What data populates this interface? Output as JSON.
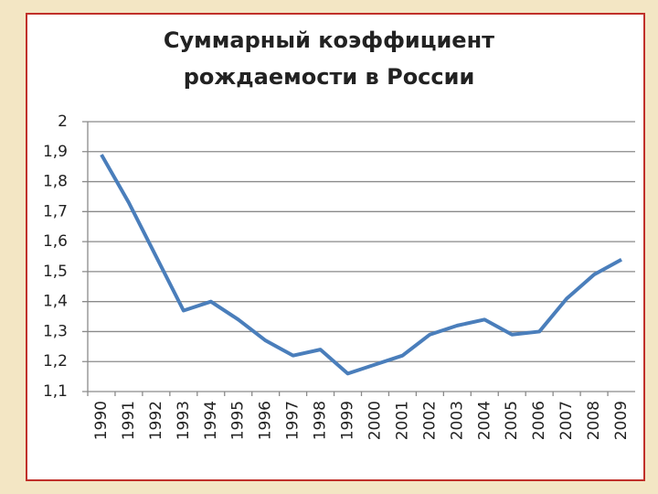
{
  "chart_data": {
    "type": "line",
    "title": "Суммарный коэффициент рождаемости в России",
    "categories": [
      "1990",
      "1991",
      "1992",
      "1993",
      "1994",
      "1995",
      "1996",
      "1997",
      "1998",
      "1999",
      "2000",
      "2001",
      "2002",
      "2003",
      "2004",
      "2005",
      "2006",
      "2007",
      "2008",
      "2009"
    ],
    "values": [
      1.89,
      1.73,
      1.55,
      1.37,
      1.4,
      1.34,
      1.27,
      1.22,
      1.24,
      1.16,
      1.19,
      1.22,
      1.29,
      1.32,
      1.34,
      1.29,
      1.3,
      1.41,
      1.49,
      1.54
    ],
    "color": "#4a7ebb",
    "ylim": [
      1.1,
      2
    ],
    "yticks": [
      {
        "value": 1.1,
        "label": "1,1"
      },
      {
        "value": 1.2,
        "label": "1,2"
      },
      {
        "value": 1.3,
        "label": "1,3"
      },
      {
        "value": 1.4,
        "label": "1,4"
      },
      {
        "value": 1.5,
        "label": "1,5"
      },
      {
        "value": 1.6,
        "label": "1,6"
      },
      {
        "value": 1.7,
        "label": "1,7"
      },
      {
        "value": 1.8,
        "label": "1,8"
      },
      {
        "value": 1.9,
        "label": "1,9"
      },
      2
    ],
    "grid": true
  }
}
